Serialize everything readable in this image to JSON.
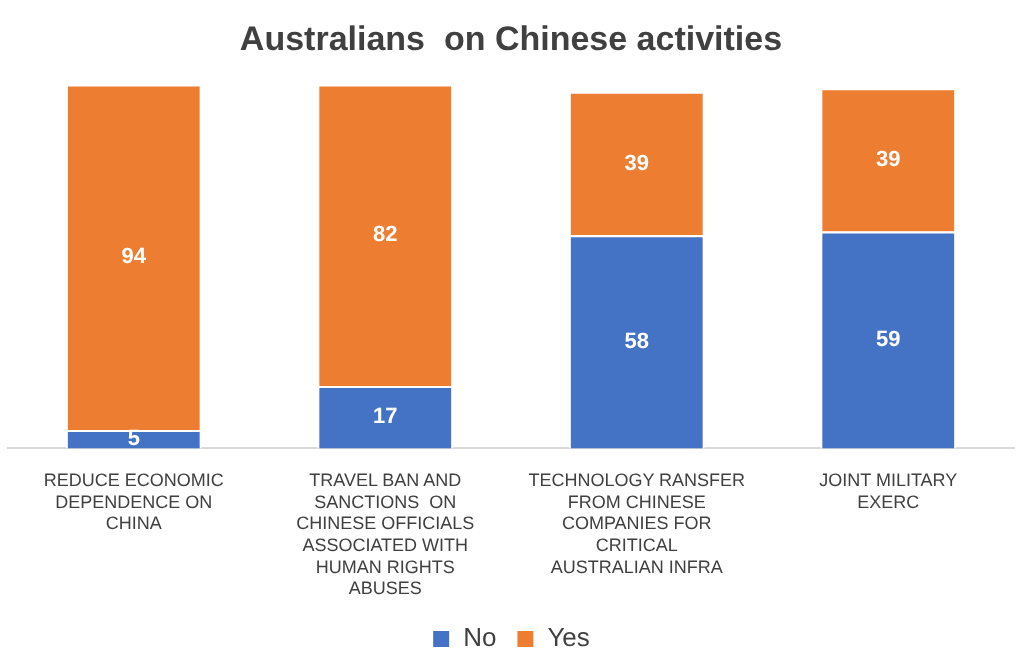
{
  "chart_data": {
    "type": "bar",
    "title": "Australians  on Chinese activities",
    "stacked": true,
    "data_labels": true,
    "legend": "bottom",
    "grid": false,
    "categories": [
      "REDUCE ECONOMIC DEPENDENCE ON CHINA",
      "TRAVEL BAN AND SANCTIONS  ON CHINESE OFFICIALS ASSOCIATED WITH HUMAN RIGHTS ABUSES",
      "TECHNOLOGY RANSFER FROM CHINESE COMPANIES FOR CRITICAL AUSTRALIAN INFRA",
      "JOINT MILITARY EXERC"
    ],
    "series": [
      {
        "name": "No",
        "color": "#4472c4",
        "values": [
          5,
          17,
          58,
          59
        ]
      },
      {
        "name": "Yes",
        "color": "#ed7d31",
        "values": [
          94,
          82,
          39,
          39
        ]
      }
    ]
  }
}
